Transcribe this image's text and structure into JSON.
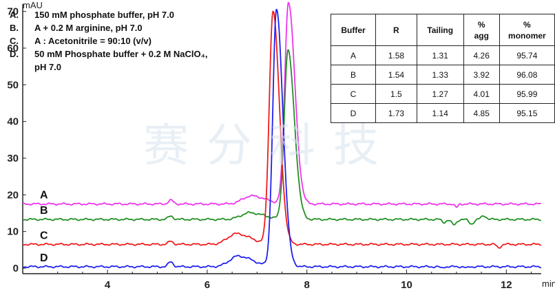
{
  "chart_data": {
    "type": "line",
    "y_unit": "mAU",
    "x_unit": "min",
    "xlim": [
      2.3,
      12.7
    ],
    "ylim": [
      0,
      72
    ],
    "x_ticks": [
      4,
      6,
      8,
      10,
      12
    ],
    "y_ticks": [
      0,
      10,
      20,
      30,
      40,
      50,
      60,
      70
    ],
    "grid": false,
    "legend_position": "top-left",
    "conditions": [
      {
        "key": "A.",
        "lines": [
          "150 mM phosphate buffer, pH 7.0"
        ]
      },
      {
        "key": "B.",
        "lines": [
          "A + 0.2 M arginine, pH 7.0"
        ]
      },
      {
        "key": "C.",
        "lines": [
          "A : Acetonitrile = 90:10 (v/v)"
        ]
      },
      {
        "key": "D.",
        "lines": [
          "50 mM Phosphate buffer + 0.2 M NaClO₄,",
          "pH 7.0"
        ]
      }
    ],
    "series": [
      {
        "name": "A",
        "color": "#ee33ee",
        "baseline": 17.5,
        "peaks": [
          [
            5.27,
            1.0,
            0.05
          ],
          [
            6.88,
            2.2,
            0.17
          ],
          [
            7.63,
            55.0,
            0.075
          ]
        ],
        "bumps": [
          [
            11.0,
            -1.0,
            0.03
          ]
        ]
      },
      {
        "name": "B",
        "color": "#1f8f1f",
        "baseline": 13.3,
        "peaks": [
          [
            5.27,
            0.9,
            0.05
          ],
          [
            6.85,
            1.8,
            0.17
          ],
          [
            7.62,
            46.0,
            0.075
          ]
        ],
        "bumps": [
          [
            10.75,
            -0.8,
            0.04
          ],
          [
            10.95,
            -1.5,
            0.05
          ],
          [
            11.3,
            -1.2,
            0.05
          ],
          [
            11.55,
            1.0,
            0.05
          ]
        ]
      },
      {
        "name": "C",
        "color": "#ee1c1c",
        "baseline": 6.5,
        "peaks": [
          [
            5.27,
            0.8,
            0.05
          ],
          [
            6.58,
            2.9,
            0.17
          ],
          [
            7.32,
            63.5,
            0.075
          ]
        ],
        "bumps": [
          [
            11.85,
            -0.9,
            0.04
          ]
        ]
      },
      {
        "name": "D",
        "color": "#1f1fee",
        "baseline": 0.4,
        "peaks": [
          [
            5.27,
            1.3,
            0.05
          ],
          [
            6.62,
            2.9,
            0.17
          ],
          [
            7.39,
            70.0,
            0.075
          ]
        ],
        "bumps": [
          [
            10.7,
            -0.4,
            0.03
          ],
          [
            11.2,
            -0.4,
            0.03
          ]
        ]
      }
    ]
  },
  "table": {
    "headers": [
      [
        "Buffer"
      ],
      [
        "R"
      ],
      [
        "Tailing"
      ],
      [
        "%",
        "agg"
      ],
      [
        "%",
        "monomer"
      ]
    ],
    "rows": [
      [
        "A",
        "1.58",
        "1.31",
        "4.26",
        "95.74"
      ],
      [
        "B",
        "1.54",
        "1.33",
        "3.92",
        "96.08"
      ],
      [
        "C",
        "1.5",
        "1.27",
        "4.01",
        "95.99"
      ],
      [
        "D",
        "1.73",
        "1.14",
        "4.85",
        "95.15"
      ]
    ]
  },
  "watermark": "赛分科技"
}
